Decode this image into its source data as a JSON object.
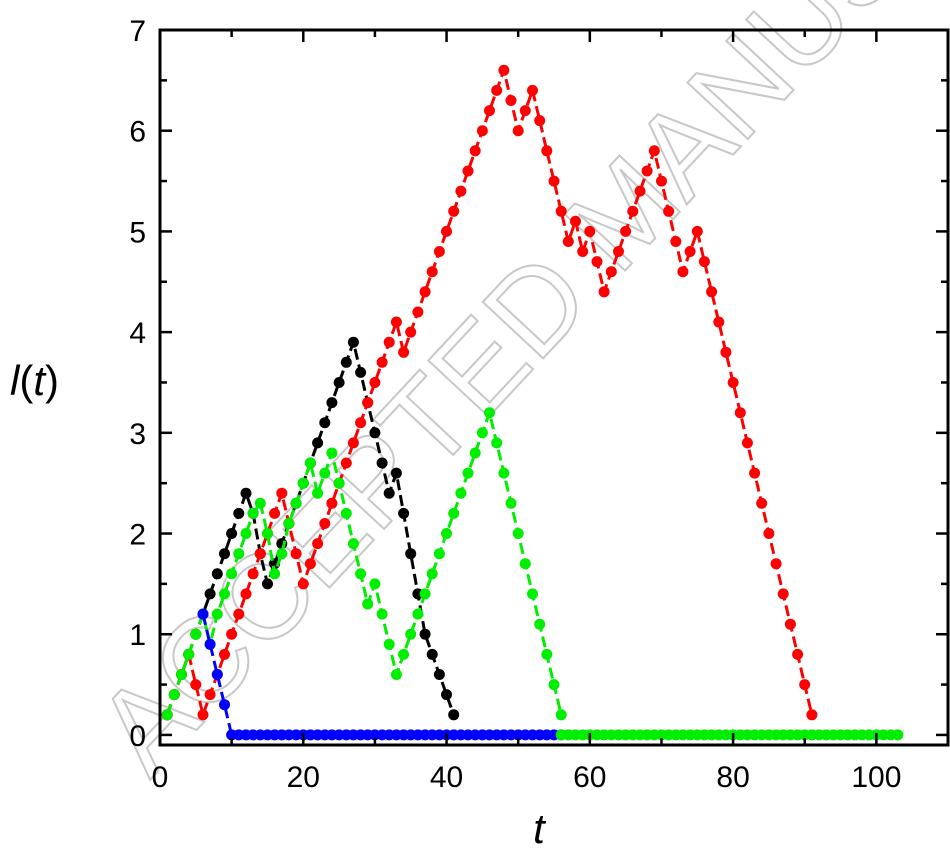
{
  "watermark": "ACCEPTED MANUSCRIPT",
  "chart_data": {
    "type": "line",
    "xlabel": "t",
    "ylabel": {
      "italic_start": "l",
      "paren_open": "(",
      "italic_var": "t",
      "paren_close": ")"
    },
    "xlim": [
      0,
      110
    ],
    "ylim": [
      -0.1,
      7
    ],
    "xticks": [
      0,
      20,
      40,
      60,
      80,
      100
    ],
    "yticks": [
      0,
      1,
      2,
      3,
      4,
      5,
      6,
      7
    ],
    "grid": false,
    "legend": "none",
    "series": [
      {
        "color": "#000000",
        "x": [
          1,
          2,
          3,
          4,
          5,
          6,
          7,
          8,
          9,
          10,
          11,
          12,
          13,
          14,
          15,
          16,
          17,
          18,
          19,
          20,
          21,
          22,
          23,
          24,
          25,
          26,
          27,
          28,
          29,
          30,
          31,
          32,
          33,
          34,
          35,
          36,
          37,
          38,
          39,
          40,
          41
        ],
        "y": [
          0.2,
          0.4,
          0.6,
          0.8,
          1.0,
          1.2,
          1.4,
          1.6,
          1.8,
          2.0,
          2.2,
          2.4,
          2.2,
          1.8,
          1.5,
          1.7,
          1.9,
          2.1,
          2.3,
          2.5,
          2.7,
          2.9,
          3.1,
          3.3,
          3.5,
          3.7,
          3.9,
          3.6,
          3.3,
          3.0,
          2.7,
          2.4,
          2.6,
          2.2,
          1.8,
          1.4,
          1.0,
          0.8,
          0.6,
          0.4,
          0.2
        ]
      },
      {
        "color": "#ff0000",
        "x": [
          1,
          2,
          3,
          4,
          5,
          6,
          7,
          8,
          9,
          10,
          11,
          12,
          13,
          14,
          15,
          16,
          17,
          18,
          19,
          20,
          21,
          22,
          23,
          24,
          25,
          26,
          27,
          28,
          29,
          30,
          31,
          32,
          33,
          34,
          35,
          36,
          37,
          38,
          39,
          40,
          41,
          42,
          43,
          44,
          45,
          46,
          47,
          48,
          49,
          50,
          51,
          52,
          53,
          54,
          55,
          56,
          57,
          58,
          59,
          60,
          61,
          62,
          63,
          64,
          65,
          66,
          67,
          68,
          69,
          70,
          71,
          72,
          73,
          74,
          75,
          76,
          77,
          78,
          79,
          80,
          81,
          82,
          83,
          84,
          85,
          86,
          87,
          88,
          89,
          90,
          91
        ],
        "y": [
          0.2,
          0.4,
          0.6,
          0.8,
          0.5,
          0.2,
          0.4,
          0.6,
          0.8,
          1.0,
          1.2,
          1.4,
          1.6,
          1.8,
          2.0,
          2.2,
          2.4,
          2.1,
          1.8,
          1.5,
          1.7,
          1.9,
          2.1,
          2.3,
          2.5,
          2.7,
          2.9,
          3.1,
          3.3,
          3.5,
          3.7,
          3.9,
          4.1,
          3.8,
          4.0,
          4.2,
          4.4,
          4.6,
          4.8,
          5.0,
          5.2,
          5.4,
          5.6,
          5.8,
          6.0,
          6.2,
          6.4,
          6.6,
          6.3,
          6.0,
          6.2,
          6.4,
          6.1,
          5.8,
          5.5,
          5.2,
          4.9,
          5.1,
          4.8,
          5.0,
          4.7,
          4.4,
          4.6,
          4.8,
          5.0,
          5.2,
          5.4,
          5.6,
          5.8,
          5.5,
          5.2,
          4.9,
          4.6,
          4.8,
          5.0,
          4.7,
          4.4,
          4.1,
          3.8,
          3.5,
          3.2,
          2.9,
          2.6,
          2.3,
          2.0,
          1.7,
          1.4,
          1.1,
          0.8,
          0.5,
          0.2
        ]
      },
      {
        "color": "#00ee00",
        "x": [
          1,
          2,
          3,
          4,
          5,
          6,
          7,
          8,
          9,
          10,
          11,
          12,
          13,
          14,
          15,
          16,
          17,
          18,
          19,
          20,
          21,
          22,
          23,
          24,
          25,
          26,
          27,
          28,
          29,
          30,
          31,
          32,
          33,
          34,
          35,
          36,
          37,
          38,
          39,
          40,
          41,
          42,
          43,
          44,
          45,
          46,
          47,
          48,
          49,
          50,
          51,
          52,
          53,
          54,
          55,
          56
        ],
        "y": [
          0.2,
          0.4,
          0.6,
          0.8,
          1.0,
          1.2,
          0.9,
          1.2,
          1.4,
          1.6,
          1.8,
          2.0,
          2.2,
          2.3,
          2.0,
          1.6,
          1.8,
          2.1,
          2.3,
          2.5,
          2.7,
          2.4,
          2.6,
          2.8,
          2.5,
          2.2,
          1.9,
          1.6,
          1.3,
          1.5,
          1.2,
          0.9,
          0.6,
          0.8,
          1.0,
          1.2,
          1.4,
          1.6,
          1.8,
          2.0,
          2.2,
          2.4,
          2.6,
          2.8,
          3.0,
          3.2,
          2.9,
          2.6,
          2.3,
          2.0,
          1.7,
          1.4,
          1.1,
          0.8,
          0.5,
          0.2
        ]
      },
      {
        "color": "#0000ff",
        "x": [
          6,
          7,
          8,
          9,
          10,
          11,
          12,
          13,
          14,
          15,
          16,
          17,
          18,
          19,
          20,
          21,
          22,
          23,
          24,
          25,
          26,
          27,
          28,
          29,
          30,
          31,
          32,
          33,
          34,
          35,
          36,
          37,
          38,
          39,
          40,
          41,
          42,
          43,
          44,
          45,
          46,
          47,
          48,
          49,
          50,
          51,
          52,
          53,
          54,
          55,
          56
        ],
        "y": [
          1.2,
          0.9,
          0.6,
          0.3,
          0.0,
          0.0,
          0.0,
          0.0,
          0.0,
          0.0,
          0.0,
          0.0,
          0.0,
          0.0,
          0.0,
          0.0,
          0.0,
          0.0,
          0.0,
          0.0,
          0.0,
          0.0,
          0.0,
          0.0,
          0.0,
          0.0,
          0.0,
          0.0,
          0.0,
          0.0,
          0.0,
          0.0,
          0.0,
          0.0,
          0.0,
          0.0,
          0.0,
          0.0,
          0.0,
          0.0,
          0.0,
          0.0,
          0.0,
          0.0,
          0.0,
          0.0,
          0.0,
          0.0,
          0.0,
          0.0,
          0.0
        ]
      },
      {
        "color": "#00ee00",
        "x": [
          56,
          57,
          58,
          59,
          60,
          61,
          62,
          63,
          64,
          65,
          66,
          67,
          68,
          69,
          70,
          71,
          72,
          73,
          74,
          75,
          76,
          77,
          78,
          79,
          80,
          81,
          82,
          83,
          84,
          85,
          86,
          87,
          88,
          89,
          90,
          91,
          92,
          93,
          94,
          95,
          96,
          97,
          98,
          99,
          100,
          101,
          102,
          103
        ],
        "y": [
          0,
          0,
          0,
          0,
          0,
          0,
          0,
          0,
          0,
          0,
          0,
          0,
          0,
          0,
          0,
          0,
          0,
          0,
          0,
          0,
          0,
          0,
          0,
          0,
          0,
          0,
          0,
          0,
          0,
          0,
          0,
          0,
          0,
          0,
          0,
          0,
          0,
          0,
          0,
          0,
          0,
          0,
          0,
          0,
          0,
          0,
          0,
          0
        ]
      }
    ]
  }
}
